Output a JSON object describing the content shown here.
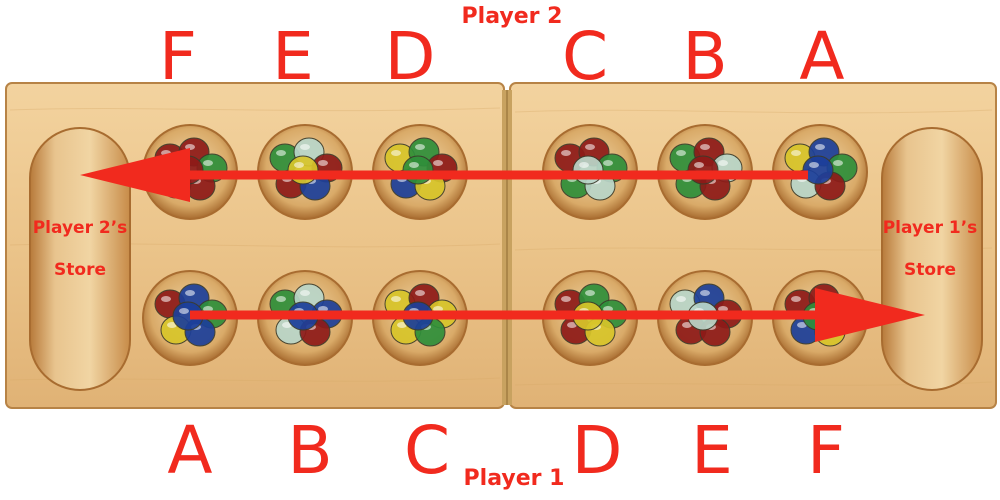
{
  "labels": {
    "player_top": "Player 2",
    "player_bottom": "Player 1",
    "store_left_line1": "Player 2’s",
    "store_left_line2": "Store",
    "store_right_line1": "Player 1’s",
    "store_right_line2": "Store"
  },
  "top_letters": [
    "F",
    "E",
    "D",
    "C",
    "B",
    "A"
  ],
  "bottom_letters": [
    "A",
    "B",
    "C",
    "D",
    "E",
    "F"
  ],
  "colors": {
    "accent_red": "#f12a1e",
    "wood_light": "#ecc88e",
    "wood_mid": "#dcae6c",
    "wood_dark": "#b9803f",
    "marble_green": "#2f8f3a",
    "marble_blue": "#1c3f9a",
    "marble_red": "#8e1a18",
    "marble_yellow": "#d8c52a",
    "marble_clear": "#b9d6c9"
  }
}
